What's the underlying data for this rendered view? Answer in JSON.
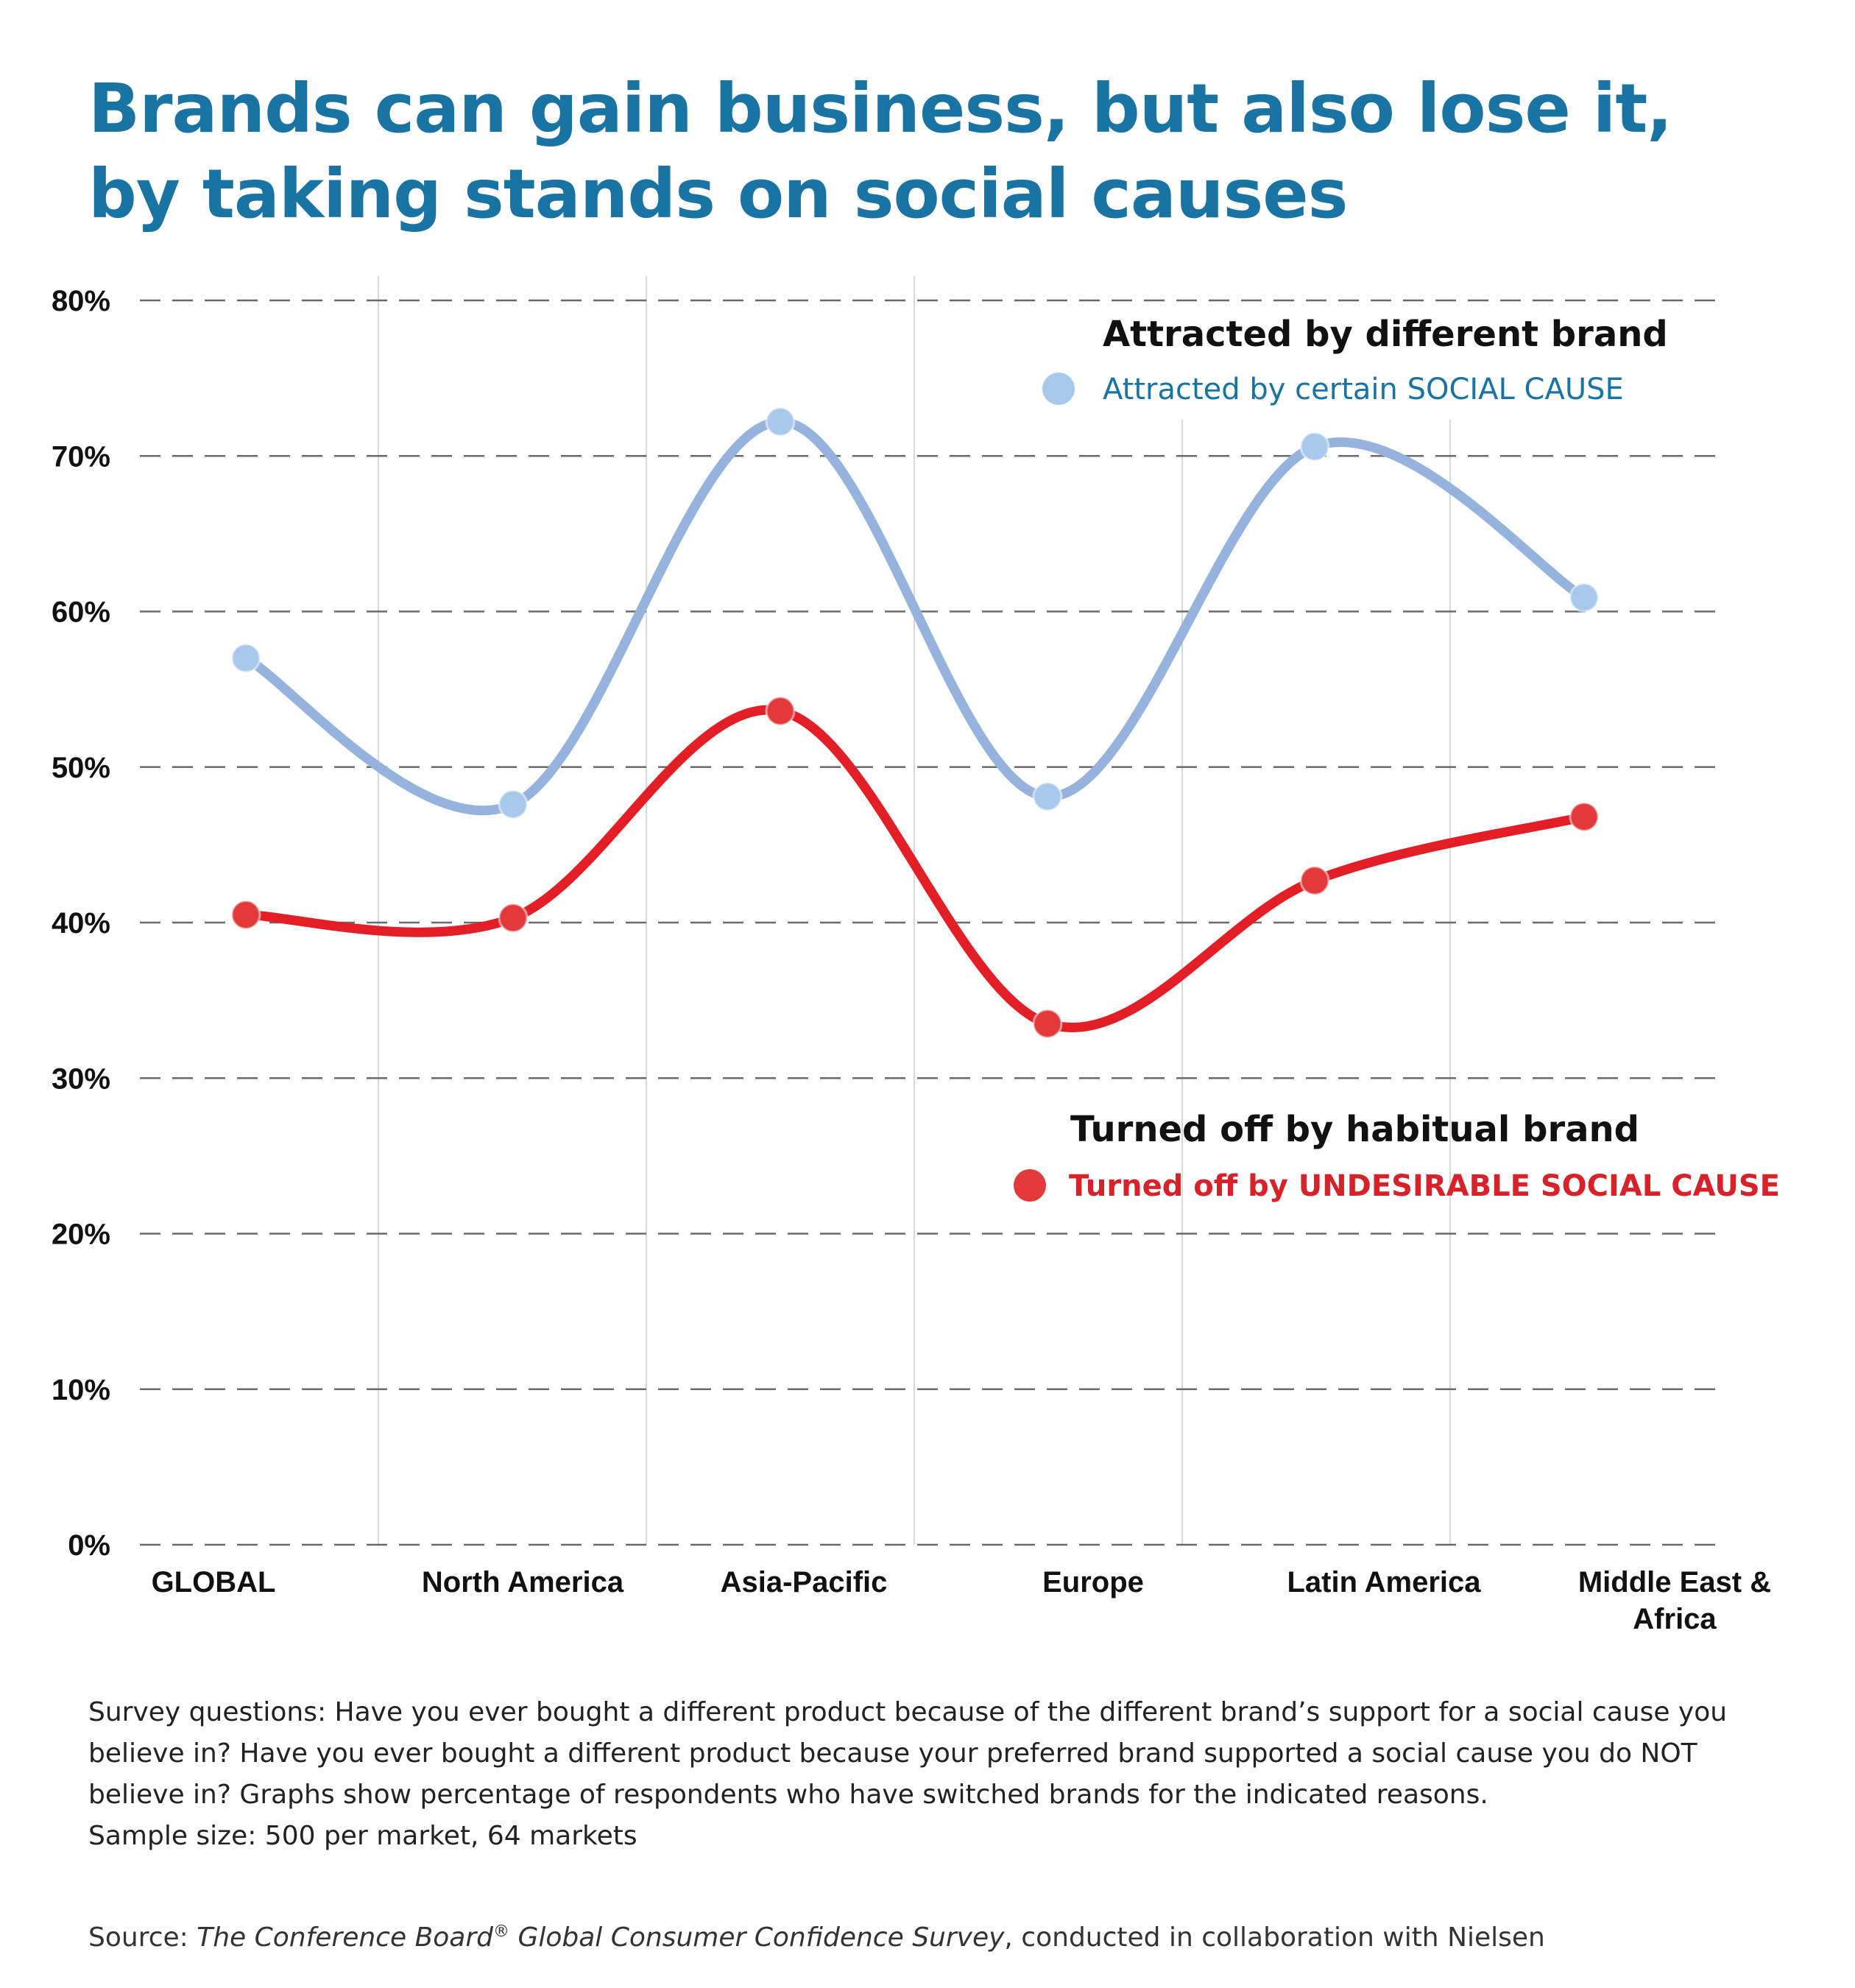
{
  "title": "Brands can gain business, but also lose it, by taking stands on social causes",
  "chart_data": {
    "type": "line",
    "categories": [
      "GLOBAL",
      "North America",
      "Asia-Pacific",
      "Europe",
      "Latin America",
      "Middle East & Africa"
    ],
    "category_lines": [
      [
        "GLOBAL"
      ],
      [
        "North America"
      ],
      [
        "Asia-Pacific"
      ],
      [
        "Europe"
      ],
      [
        "Latin America"
      ],
      [
        "Middle East &",
        "Africa"
      ]
    ],
    "y_ticks": [
      "0%",
      "10%",
      "20%",
      "30%",
      "40%",
      "50%",
      "60%",
      "70%",
      "80%"
    ],
    "ylim": [
      0,
      80
    ],
    "grid": "horizontal dashed",
    "series": [
      {
        "heading": "Attracted by different brand",
        "name": "Attracted by certain SOCIAL CAUSE",
        "line_color": "#95b3dd",
        "marker_color": "#a9c9ec",
        "label_color": "#1a74a3",
        "values": [
          57,
          47.6,
          72.2,
          48.1,
          70.6,
          60.9
        ]
      },
      {
        "heading": "Turned off by habitual brand",
        "name": "Turned off by UNDESIRABLE SOCIAL CAUSE",
        "line_color": "#e21f26",
        "marker_color": "#e23a3a",
        "label_color": "#d7222a",
        "values": [
          40.5,
          40.3,
          53.6,
          33.5,
          42.7,
          46.8
        ]
      }
    ]
  },
  "notes": [
    "Survey questions: Have you ever bought a different product because of  the different brand’s support for a social cause you",
    "believe in? Have you ever bought a different product because your preferred brand supported a social cause you do NOT",
    "believe in? Graphs show percentage of respondents who have switched brands for the indicated reasons.",
    "Sample size: 500 per market, 64 markets"
  ],
  "source": {
    "prefix": "Source: ",
    "italic_1": "The Conference Board",
    "reg_mark": "®",
    "italic_2": " Global Consumer Confidence Survey",
    "suffix": ", conducted in collaboration with Nielsen"
  }
}
